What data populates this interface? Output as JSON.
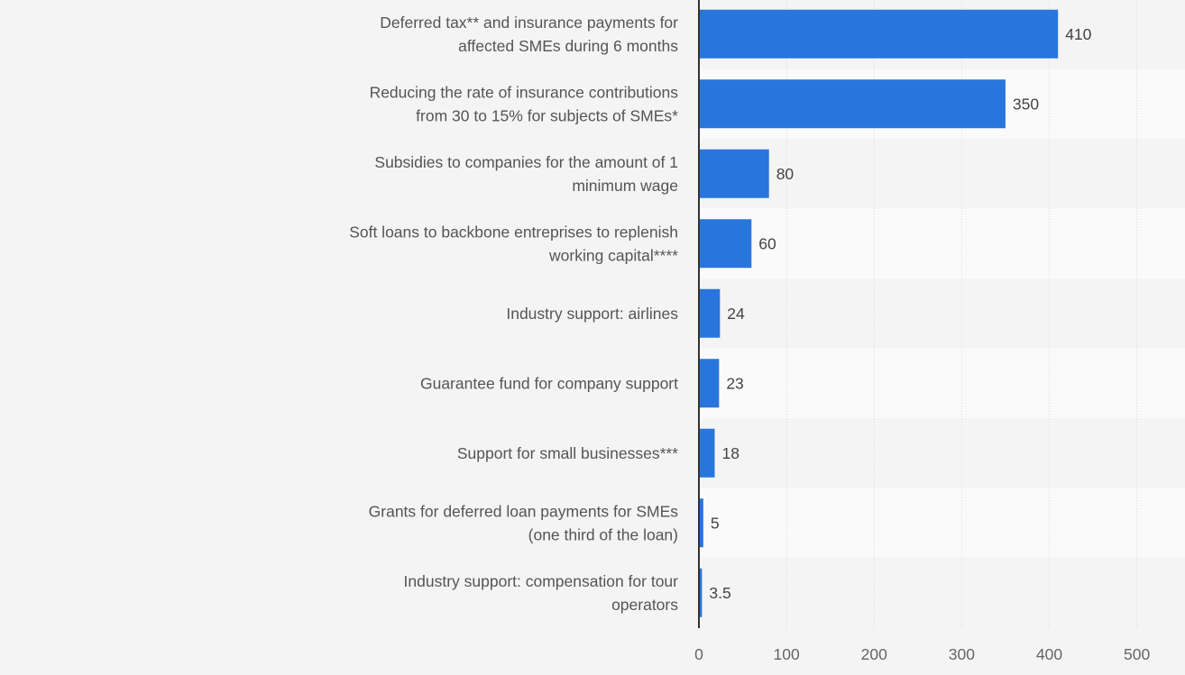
{
  "chart_data": {
    "type": "bar",
    "orientation": "horizontal",
    "categories": [
      [
        "Deferred tax** and insurance payments for",
        "affected SMEs during 6 months"
      ],
      [
        "Reducing the rate of insurance contributions",
        "from 30 to 15% for subjects of SMEs*"
      ],
      [
        "Subsidies to companies for the amount of 1",
        "minimum wage"
      ],
      [
        "Soft loans to backbone entreprises to replenish",
        "working capital****"
      ],
      [
        "Industry support: airlines"
      ],
      [
        "Guarantee fund for company support"
      ],
      [
        "Support for small businesses***"
      ],
      [
        "Grants for deferred loan payments for SMEs",
        "(one third of the loan)"
      ],
      [
        "Industry support: compensation for tour",
        "operators"
      ]
    ],
    "values": [
      410,
      350,
      80,
      60,
      24,
      23,
      18,
      5,
      3.5
    ],
    "value_labels": [
      "410",
      "350",
      "80",
      "60",
      "24",
      "23",
      "18",
      "5",
      "3.5"
    ],
    "xlim": [
      0,
      500
    ],
    "x_ticks": [
      0,
      100,
      200,
      300,
      400,
      500
    ],
    "grid": true,
    "title": "",
    "xlabel": "",
    "ylabel": "",
    "colors": {
      "bar": "#2876dd",
      "background": "#f4f4f4",
      "band_alt": "#fafafa",
      "axis": "#333333",
      "grid": "#d9d9d9"
    }
  }
}
